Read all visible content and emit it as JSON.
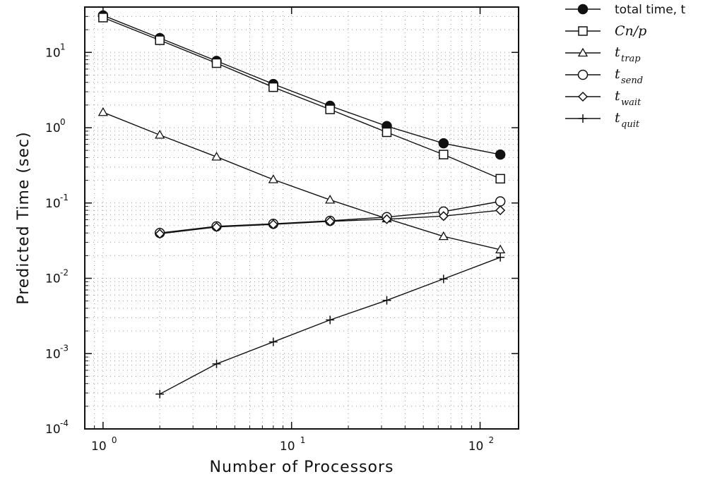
{
  "chart_data": {
    "type": "line",
    "xlabel": "Number of Processors",
    "ylabel": "Predicted Time (sec)",
    "xscale": "log",
    "yscale": "log",
    "xlim": [
      0.8,
      160
    ],
    "ylim": [
      0.0001,
      40
    ],
    "x_ticks": [
      {
        "base": "10",
        "exp": "0"
      },
      {
        "base": "10",
        "exp": "1"
      },
      {
        "base": "10",
        "exp": "2"
      }
    ],
    "y_ticks": [
      {
        "base": "10",
        "exp": "-4"
      },
      {
        "base": "10",
        "exp": "-3"
      },
      {
        "base": "10",
        "exp": "-2"
      },
      {
        "base": "10",
        "exp": "-1"
      },
      {
        "base": "10",
        "exp": "0"
      },
      {
        "base": "10",
        "exp": "1"
      }
    ],
    "grid": "dotted",
    "legend_position": "right",
    "series": [
      {
        "name": "total time, t",
        "name_main": "total time, t",
        "name_sub": "",
        "marker": "filled-circle",
        "x": [
          1,
          2,
          4,
          8,
          16,
          32,
          64,
          128
        ],
        "y": [
          31,
          15.5,
          7.7,
          3.8,
          1.95,
          1.05,
          0.62,
          0.44
        ]
      },
      {
        "name": "Cn/p",
        "name_main": "Cn/p",
        "name_sub": "",
        "marker": "square",
        "x": [
          1,
          2,
          4,
          8,
          16,
          32,
          64,
          128
        ],
        "y": [
          29,
          14.5,
          7.2,
          3.45,
          1.75,
          0.87,
          0.44,
          0.21
        ]
      },
      {
        "name": "t trap",
        "name_main": "t",
        "name_sub": "trap",
        "marker": "triangle",
        "x": [
          1,
          2,
          4,
          8,
          16,
          32,
          64,
          128
        ],
        "y": [
          1.6,
          0.8,
          0.41,
          0.205,
          0.11,
          0.062,
          0.036,
          0.024
        ]
      },
      {
        "name": "t send",
        "name_main": "t",
        "name_sub": "send",
        "marker": "circle",
        "x": [
          2,
          4,
          8,
          16,
          32,
          64,
          128
        ],
        "y": [
          0.04,
          0.049,
          0.053,
          0.058,
          0.065,
          0.077,
          0.105
        ]
      },
      {
        "name": "t wait",
        "name_main": "t",
        "name_sub": "wait",
        "marker": "diamond",
        "x": [
          2,
          4,
          8,
          16,
          32,
          64,
          128
        ],
        "y": [
          0.039,
          0.048,
          0.052,
          0.057,
          0.061,
          0.067,
          0.08
        ]
      },
      {
        "name": "t quit",
        "name_main": "t",
        "name_sub": "quit",
        "marker": "plus",
        "x": [
          2,
          4,
          8,
          16,
          32,
          64,
          128
        ],
        "y": [
          0.00029,
          0.00073,
          0.00143,
          0.0028,
          0.0051,
          0.0098,
          0.019
        ]
      }
    ]
  }
}
